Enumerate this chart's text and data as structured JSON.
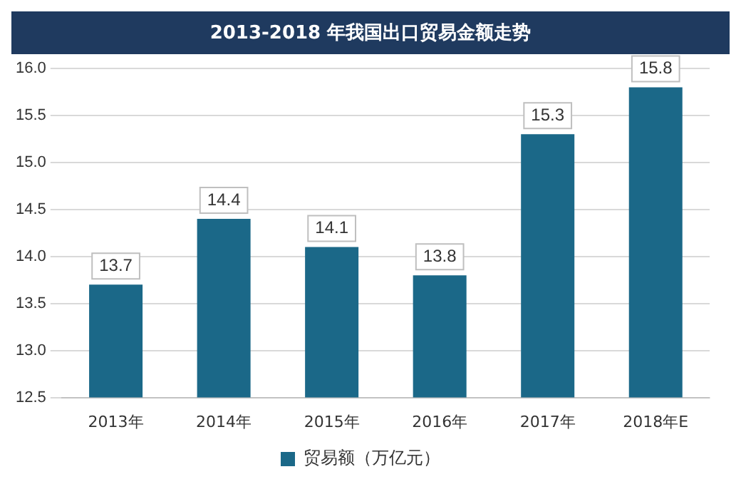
{
  "chart_data": {
    "type": "bar",
    "title": "2013-2018 年我国出口贸易金额走势",
    "categories": [
      "2013年",
      "2014年",
      "2015年",
      "2016年",
      "2017年",
      "2018年E"
    ],
    "series": [
      {
        "name": "贸易额（万亿元）",
        "color": "#1b6888",
        "values": [
          13.7,
          14.4,
          14.1,
          13.8,
          15.3,
          15.8
        ]
      }
    ],
    "ylim": [
      12.5,
      16.0
    ],
    "yticks": [
      12.5,
      {
        "value": 13,
        "label": "13.0"
      },
      13.5,
      {
        "value": 14,
        "label": "14.0"
      },
      14.5,
      {
        "value": 15,
        "label": "15.0"
      },
      15.5,
      {
        "value": 16,
        "label": "16.0"
      }
    ],
    "grid": "y",
    "legend": "bottom",
    "data_labels": true
  }
}
